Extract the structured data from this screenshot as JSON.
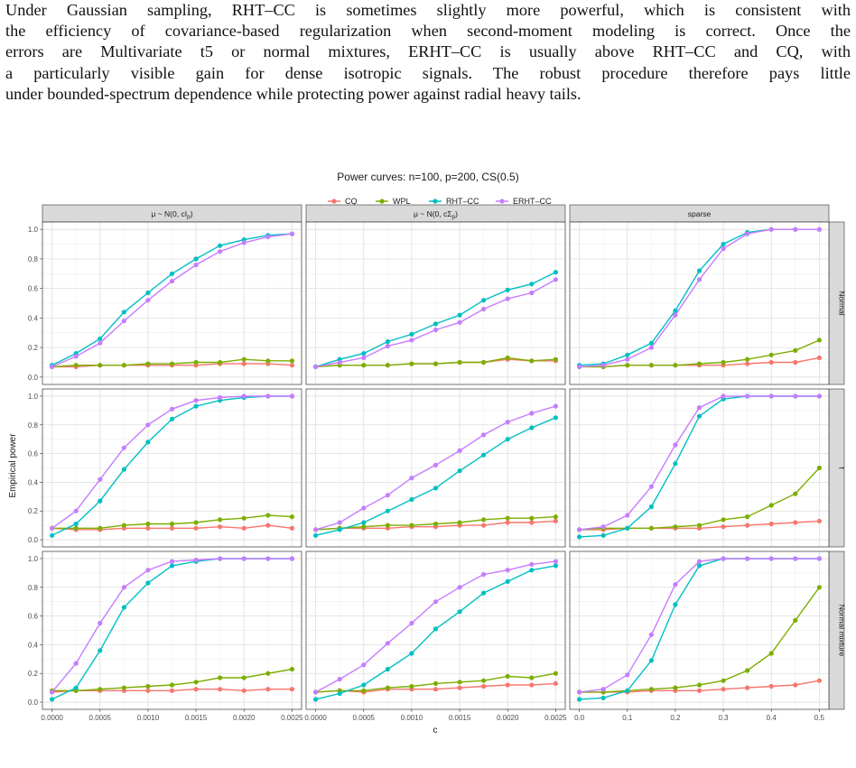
{
  "paragraph_lines": [
    "Under Gaussian sampling, RHT–CC is sometimes slightly more powerful, which is consistent with",
    "the efficiency of covariance-based regularization when second-moment modeling is correct. Once the",
    "errors are Multivariate t5 or normal mixtures, ERHT–CC is usually above RHT–CC and CQ, with",
    "a particularly visible gain for dense isotropic signals. The robust procedure therefore pays little",
    "under bounded-spectrum dependence while protecting power against radial heavy tails."
  ],
  "chart_data": {
    "type": "line",
    "title": "Power curves: n=100, p=200, CS(0.5)",
    "xlabel": "c",
    "ylabel": "Empirical power",
    "ylim": [
      0,
      1
    ],
    "yticks": [
      "0.0",
      "0.2",
      "0.4",
      "0.6",
      "0.8",
      "1.0"
    ],
    "grid": true,
    "legend_position": "top",
    "legend": [
      {
        "name": "CQ",
        "color": "#F8766D"
      },
      {
        "name": "WPL",
        "color": "#7CAE00"
      },
      {
        "name": "RHT–CC",
        "color": "#00BFC4"
      },
      {
        "name": "ERHT–CC",
        "color": "#C77CFF"
      }
    ],
    "columns": [
      {
        "label": "μ ~ N(0, cI",
        "label_sub": "p",
        "label_end": ")",
        "x": [
          0,
          0.00025,
          0.0005,
          0.00075,
          0.001,
          0.00125,
          0.0015,
          0.00175,
          0.002,
          0.00225,
          0.0025
        ],
        "xticks": [
          "0.0000",
          "0.0005",
          "0.0010",
          "0.0015",
          "0.0020",
          "0.0025"
        ],
        "xtick_values": [
          0,
          0.0005,
          0.001,
          0.0015,
          0.002,
          0.0025
        ],
        "xlim": [
          -0.0001,
          0.0026
        ]
      },
      {
        "label": "μ ~ N(0, cΣ",
        "label_sub": "p",
        "label_end": ")",
        "x": [
          0,
          0.00025,
          0.0005,
          0.00075,
          0.001,
          0.00125,
          0.0015,
          0.00175,
          0.002,
          0.00225,
          0.0025
        ],
        "xticks": [
          "0.0000",
          "0.0005",
          "0.0010",
          "0.0015",
          "0.0020",
          "0.0025"
        ],
        "xtick_values": [
          0,
          0.0005,
          0.001,
          0.0015,
          0.002,
          0.0025
        ],
        "xlim": [
          -0.0001,
          0.0026
        ]
      },
      {
        "label": "sparse",
        "label_sub": "",
        "label_end": "",
        "x": [
          0,
          0.05,
          0.1,
          0.15,
          0.2,
          0.25,
          0.3,
          0.35,
          0.4,
          0.45,
          0.5
        ],
        "xticks": [
          "0.0",
          "0.1",
          "0.2",
          "0.3",
          "0.4",
          "0.5"
        ],
        "xtick_values": [
          0,
          0.1,
          0.2,
          0.3,
          0.4,
          0.5
        ],
        "xlim": [
          -0.02,
          0.52
        ]
      }
    ],
    "rows": [
      "Normal",
      "t",
      "Normal mixture"
    ],
    "panels": [
      [
        {
          "CQ": [
            0.07,
            0.07,
            0.08,
            0.08,
            0.08,
            0.08,
            0.08,
            0.09,
            0.09,
            0.09,
            0.08
          ],
          "WPL": [
            0.07,
            0.08,
            0.08,
            0.08,
            0.09,
            0.09,
            0.1,
            0.1,
            0.12,
            0.11,
            0.11
          ],
          "RHT–CC": [
            0.08,
            0.16,
            0.26,
            0.44,
            0.57,
            0.7,
            0.8,
            0.89,
            0.93,
            0.96,
            0.97
          ],
          "ERHT–CC": [
            0.07,
            0.14,
            0.23,
            0.38,
            0.52,
            0.65,
            0.76,
            0.85,
            0.91,
            0.95,
            0.97
          ]
        },
        {
          "CQ": [
            0.07,
            0.08,
            0.08,
            0.08,
            0.09,
            0.09,
            0.1,
            0.1,
            0.12,
            0.11,
            0.11
          ],
          "WPL": [
            0.07,
            0.08,
            0.08,
            0.08,
            0.09,
            0.09,
            0.1,
            0.1,
            0.13,
            0.11,
            0.12
          ],
          "RHT–CC": [
            0.07,
            0.12,
            0.16,
            0.24,
            0.29,
            0.36,
            0.42,
            0.52,
            0.59,
            0.63,
            0.71
          ],
          "ERHT–CC": [
            0.07,
            0.1,
            0.13,
            0.21,
            0.25,
            0.32,
            0.37,
            0.46,
            0.53,
            0.57,
            0.66
          ]
        },
        {
          "CQ": [
            0.07,
            0.07,
            0.08,
            0.08,
            0.08,
            0.08,
            0.08,
            0.09,
            0.1,
            0.1,
            0.13
          ],
          "WPL": [
            0.07,
            0.07,
            0.08,
            0.08,
            0.08,
            0.09,
            0.1,
            0.12,
            0.15,
            0.18,
            0.25
          ],
          "RHT–CC": [
            0.08,
            0.09,
            0.15,
            0.23,
            0.45,
            0.72,
            0.9,
            0.98,
            1.0,
            1.0,
            1.0
          ],
          "ERHT–CC": [
            0.07,
            0.08,
            0.12,
            0.2,
            0.42,
            0.66,
            0.87,
            0.97,
            1.0,
            1.0,
            1.0
          ]
        }
      ],
      [
        {
          "CQ": [
            0.08,
            0.07,
            0.07,
            0.08,
            0.08,
            0.08,
            0.08,
            0.09,
            0.08,
            0.1,
            0.08
          ],
          "WPL": [
            0.08,
            0.08,
            0.08,
            0.1,
            0.11,
            0.11,
            0.12,
            0.14,
            0.15,
            0.17,
            0.16
          ],
          "RHT–CC": [
            0.03,
            0.11,
            0.27,
            0.49,
            0.68,
            0.84,
            0.93,
            0.97,
            0.99,
            1.0,
            1.0
          ],
          "ERHT–CC": [
            0.08,
            0.2,
            0.42,
            0.64,
            0.8,
            0.91,
            0.97,
            0.99,
            1.0,
            1.0,
            1.0
          ]
        },
        {
          "CQ": [
            0.07,
            0.08,
            0.08,
            0.08,
            0.09,
            0.09,
            0.1,
            0.1,
            0.12,
            0.12,
            0.13
          ],
          "WPL": [
            0.07,
            0.08,
            0.09,
            0.1,
            0.1,
            0.11,
            0.12,
            0.14,
            0.15,
            0.15,
            0.16
          ],
          "RHT–CC": [
            0.03,
            0.07,
            0.12,
            0.2,
            0.28,
            0.36,
            0.48,
            0.59,
            0.7,
            0.78,
            0.85
          ],
          "ERHT–CC": [
            0.07,
            0.12,
            0.22,
            0.31,
            0.43,
            0.52,
            0.62,
            0.73,
            0.82,
            0.88,
            0.93
          ]
        },
        {
          "CQ": [
            0.07,
            0.07,
            0.08,
            0.08,
            0.08,
            0.08,
            0.09,
            0.1,
            0.11,
            0.12,
            0.13
          ],
          "WPL": [
            0.07,
            0.08,
            0.08,
            0.08,
            0.09,
            0.1,
            0.14,
            0.16,
            0.24,
            0.32,
            0.5
          ],
          "RHT–CC": [
            0.02,
            0.03,
            0.08,
            0.23,
            0.53,
            0.86,
            0.98,
            1.0,
            1.0,
            1.0,
            1.0
          ],
          "ERHT–CC": [
            0.07,
            0.09,
            0.17,
            0.37,
            0.66,
            0.92,
            1.0,
            1.0,
            1.0,
            1.0,
            1.0
          ]
        }
      ],
      [
        {
          "CQ": [
            0.07,
            0.08,
            0.08,
            0.08,
            0.08,
            0.08,
            0.09,
            0.09,
            0.08,
            0.09,
            0.09
          ],
          "WPL": [
            0.08,
            0.08,
            0.09,
            0.1,
            0.11,
            0.12,
            0.14,
            0.17,
            0.17,
            0.2,
            0.23
          ],
          "RHT–CC": [
            0.02,
            0.1,
            0.36,
            0.66,
            0.83,
            0.95,
            0.98,
            1.0,
            1.0,
            1.0,
            1.0
          ],
          "ERHT–CC": [
            0.07,
            0.27,
            0.55,
            0.8,
            0.92,
            0.98,
            0.99,
            1.0,
            1.0,
            1.0,
            1.0
          ]
        },
        {
          "CQ": [
            0.07,
            0.08,
            0.07,
            0.09,
            0.09,
            0.09,
            0.1,
            0.11,
            0.12,
            0.12,
            0.13
          ],
          "WPL": [
            0.07,
            0.08,
            0.08,
            0.1,
            0.11,
            0.13,
            0.14,
            0.15,
            0.18,
            0.17,
            0.2
          ],
          "RHT–CC": [
            0.02,
            0.06,
            0.12,
            0.23,
            0.34,
            0.51,
            0.63,
            0.76,
            0.84,
            0.92,
            0.95
          ],
          "ERHT–CC": [
            0.07,
            0.16,
            0.26,
            0.41,
            0.55,
            0.7,
            0.8,
            0.89,
            0.92,
            0.96,
            0.98
          ]
        },
        {
          "CQ": [
            0.07,
            0.07,
            0.07,
            0.08,
            0.08,
            0.08,
            0.09,
            0.1,
            0.11,
            0.12,
            0.15
          ],
          "WPL": [
            0.07,
            0.07,
            0.08,
            0.09,
            0.1,
            0.12,
            0.15,
            0.22,
            0.34,
            0.57,
            0.8
          ],
          "RHT–CC": [
            0.02,
            0.03,
            0.08,
            0.29,
            0.68,
            0.95,
            1.0,
            1.0,
            1.0,
            1.0,
            1.0
          ],
          "ERHT–CC": [
            0.07,
            0.09,
            0.19,
            0.47,
            0.82,
            0.98,
            1.0,
            1.0,
            1.0,
            1.0,
            1.0
          ]
        }
      ]
    ]
  }
}
